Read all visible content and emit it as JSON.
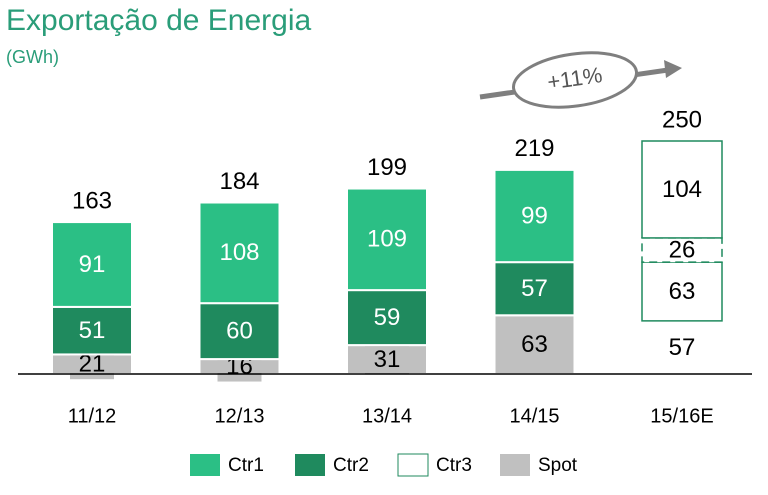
{
  "chart_data": {
    "type": "stacked-bar",
    "title": "Exportação de Energia",
    "subtitle": "(GWh)",
    "annotation": "+11%",
    "categories": [
      "11/12",
      "12/13",
      "13/14",
      "14/15",
      "15/16E"
    ],
    "totals": [
      163,
      184,
      199,
      219,
      250
    ],
    "hollow_last": true,
    "outline_color": "#1f8a5e",
    "series": [
      {
        "name": "Spot",
        "color": "#c0c0c0",
        "label_color": "#000000",
        "outline": "none",
        "values": [
          21,
          16,
          31,
          63,
          57
        ]
      },
      {
        "name": "Ctr3",
        "color": "#ffffff",
        "label_color": "#000000",
        "outline": "solid",
        "values": [
          null,
          null,
          null,
          null,
          63
        ]
      },
      {
        "name": "Ctr2",
        "color": "#1f8a5e",
        "label_color": "#ffffff",
        "outline": "dashed",
        "values": [
          51,
          60,
          59,
          57,
          26
        ]
      },
      {
        "name": "Ctr1",
        "color": "#2bbf85",
        "label_color": "#ffffff",
        "outline": "solid",
        "values": [
          91,
          108,
          109,
          99,
          104
        ]
      }
    ],
    "legend_order": [
      "Ctr1",
      "Ctr2",
      "Ctr3",
      "Spot"
    ]
  }
}
